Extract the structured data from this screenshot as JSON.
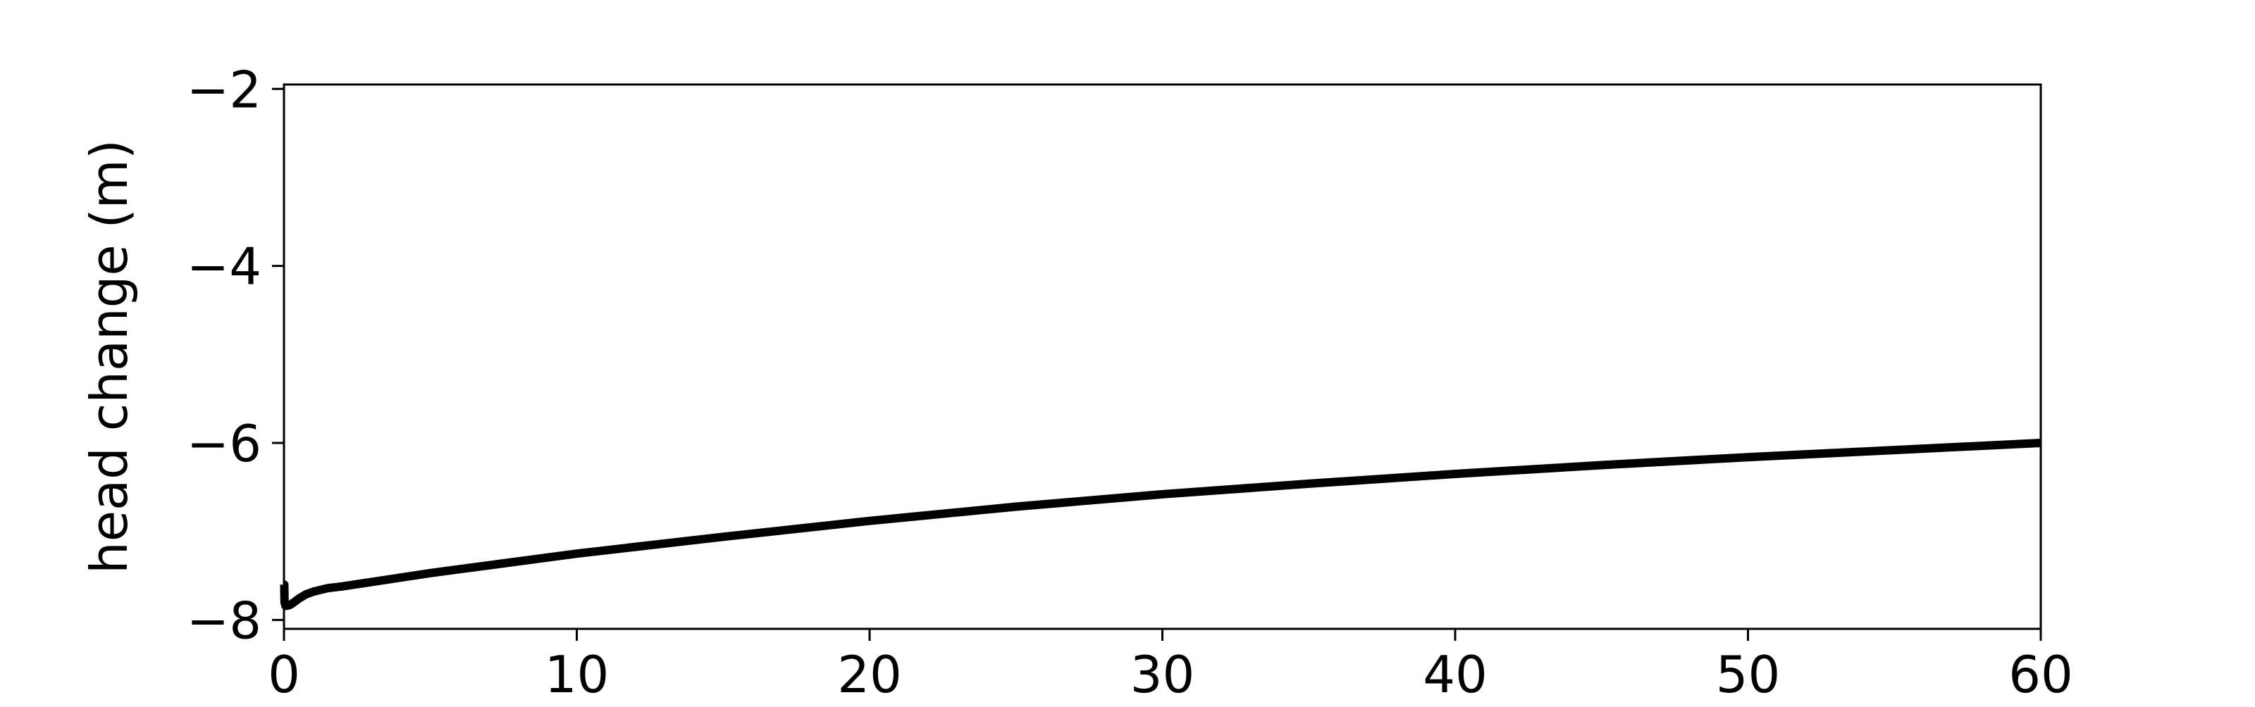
{
  "chart_data": {
    "type": "line",
    "title": "",
    "xlabel": "",
    "ylabel": "head change (m)",
    "xlim": [
      0,
      60
    ],
    "ylim": [
      -8.1,
      -1.95
    ],
    "xticks": [
      0,
      10,
      20,
      30,
      40,
      50,
      60
    ],
    "xtick_labels": [
      "0",
      "10",
      "20",
      "30",
      "40",
      "50",
      "60"
    ],
    "yticks": [
      -8,
      -6,
      -4,
      -2
    ],
    "ytick_labels": [
      "−8",
      "−6",
      "−4",
      "−2"
    ],
    "grid": false,
    "legend": "none",
    "series": [
      {
        "color": "#000000",
        "x": [
          0,
          0.01,
          0.02,
          0.05,
          0.1,
          0.2,
          0.3,
          0.5,
          0.75,
          1,
          1.5,
          2,
          3,
          5,
          7.5,
          10,
          15,
          20,
          25,
          30,
          35,
          40,
          45,
          50,
          55,
          60
        ],
        "y": [
          -7.6,
          -7.6,
          -7.8,
          -7.84,
          -7.84,
          -7.83,
          -7.81,
          -7.76,
          -7.71,
          -7.68,
          -7.64,
          -7.62,
          -7.57,
          -7.47,
          -7.36,
          -7.25,
          -7.06,
          -6.88,
          -6.72,
          -6.58,
          -6.46,
          -6.35,
          -6.25,
          -6.16,
          -6.08,
          -6.0
        ]
      }
    ]
  }
}
